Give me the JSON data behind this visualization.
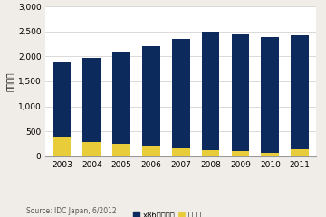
{
  "years": [
    "2003",
    "2004",
    "2005",
    "2006",
    "2007",
    "2008",
    "2009",
    "2010",
    "2011"
  ],
  "x86_values": [
    1480,
    1670,
    1860,
    1990,
    2200,
    2370,
    2330,
    2310,
    2270
  ],
  "other_values": [
    395,
    295,
    245,
    215,
    160,
    125,
    110,
    75,
    145
  ],
  "x86_color": "#0d2a5c",
  "other_color": "#e8cc3a",
  "ylabel": "（千台）",
  "ylim": [
    0,
    3000
  ],
  "yticks": [
    0,
    500,
    1000,
    1500,
    2000,
    2500,
    3000
  ],
  "legend_x86": "x86サーバー",
  "legend_other": "その他",
  "source_text": "Source: IDC Japan, 6/2012",
  "background_color": "#f0ede8",
  "plot_bg_color": "#ffffff",
  "grid_color": "#cccccc"
}
